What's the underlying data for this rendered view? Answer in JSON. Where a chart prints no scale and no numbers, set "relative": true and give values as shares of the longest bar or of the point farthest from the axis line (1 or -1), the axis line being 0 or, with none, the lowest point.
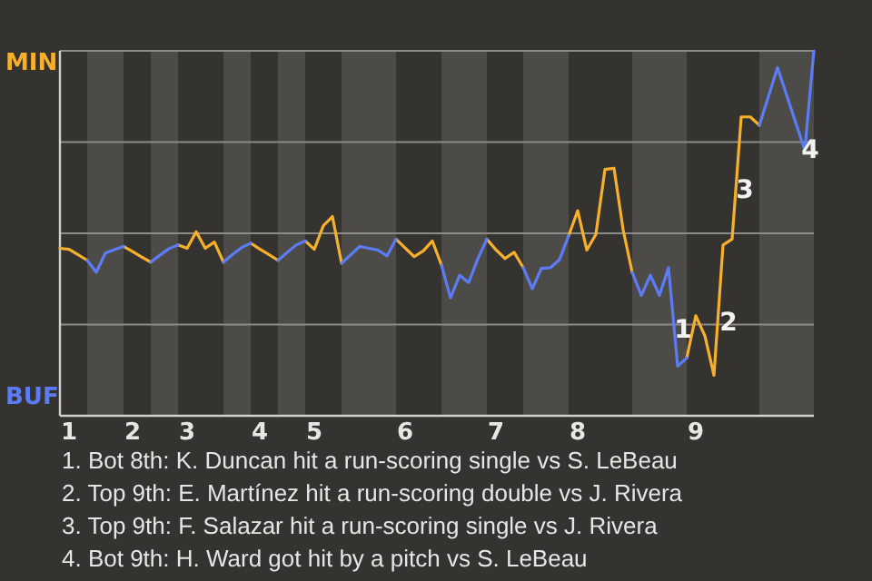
{
  "chart_data": {
    "type": "line",
    "relative": true,
    "line_style": "solid",
    "categories": [
      null,
      "1",
      null,
      null,
      null,
      null,
      null,
      null,
      "2",
      null,
      null,
      null,
      null,
      null,
      "3",
      null,
      null,
      null,
      null,
      null,
      null,
      null,
      "4",
      null,
      null,
      null,
      null,
      null,
      "5",
      null,
      null,
      null,
      null,
      null,
      null,
      null,
      null,
      null,
      "6",
      null,
      null,
      null,
      null,
      null,
      null,
      null,
      null,
      null,
      "7",
      null,
      null,
      null,
      null,
      null,
      null,
      null,
      null,
      "8",
      null,
      null,
      null,
      null,
      null,
      null,
      null,
      null,
      null,
      null,
      null,
      null,
      "9",
      null,
      null,
      null,
      null,
      null,
      null,
      null,
      null,
      null,
      null,
      null,
      null,
      null
    ],
    "series": [
      {
        "color": "#f7b02c",
        "values": [
          0.459,
          0.456,
          0.441,
          0.426,
          null,
          null,
          null,
          0.464,
          0.45,
          0.435,
          0.421,
          null,
          null,
          0.468,
          0.459,
          0.504,
          0.459,
          0.476,
          0.421,
          null,
          null,
          0.473,
          0.457,
          0.442,
          0.426,
          null,
          null,
          0.479,
          0.456,
          0.521,
          0.546,
          0.418,
          null,
          null,
          null,
          null,
          null,
          0.484,
          0.46,
          0.436,
          0.452,
          0.479,
          0.413,
          null,
          null,
          null,
          null,
          0.484,
          0.455,
          0.431,
          0.448,
          0.406,
          null,
          null,
          null,
          null,
          0.493,
          0.562,
          0.454,
          0.497,
          0.675,
          0.678,
          0.51,
          0.393,
          null,
          null,
          null,
          null,
          null,
          0.158,
          0.274,
          0.219,
          0.111,
          0.468,
          0.484,
          0.819,
          0.819,
          0.796,
          null,
          null,
          null,
          null,
          null,
          null
        ]
      },
      {
        "color": "#5b7cf5",
        "values": [
          null,
          null,
          null,
          0.426,
          0.393,
          0.446,
          0.455,
          0.464,
          null,
          null,
          0.421,
          0.44,
          0.458,
          0.468,
          null,
          null,
          null,
          null,
          0.421,
          0.442,
          0.461,
          0.473,
          null,
          null,
          0.426,
          0.447,
          0.468,
          0.479,
          null,
          null,
          null,
          0.418,
          0.441,
          0.464,
          0.459,
          0.454,
          0.438,
          0.484,
          null,
          null,
          null,
          null,
          0.413,
          0.323,
          0.385,
          0.365,
          0.43,
          0.484,
          null,
          null,
          null,
          0.406,
          0.348,
          0.404,
          0.406,
          0.428,
          0.493,
          null,
          null,
          null,
          null,
          null,
          null,
          0.393,
          0.33,
          0.385,
          0.33,
          0.406,
          0.136,
          0.158,
          null,
          null,
          null,
          null,
          null,
          null,
          null,
          0.796,
          0.875,
          0.954,
          0.879,
          0.803,
          0.728,
          1
        ]
      }
    ],
    "grid": "y",
    "annotations": [
      "MIN",
      "BUF",
      "1",
      "2",
      "3",
      "4",
      "1. Bot 8th: K. Duncan hit a run-scoring single vs S. LeBeau",
      "2. Top 9th: E. Martínez hit a run-scoring double vs J. Rivera",
      "3. Top 9th: F. Salazar hit a run-scoring single vs J. Rivera",
      "4. Bot 9th: H. Ward got hit by a pitch vs S. LeBeau"
    ]
  }
}
